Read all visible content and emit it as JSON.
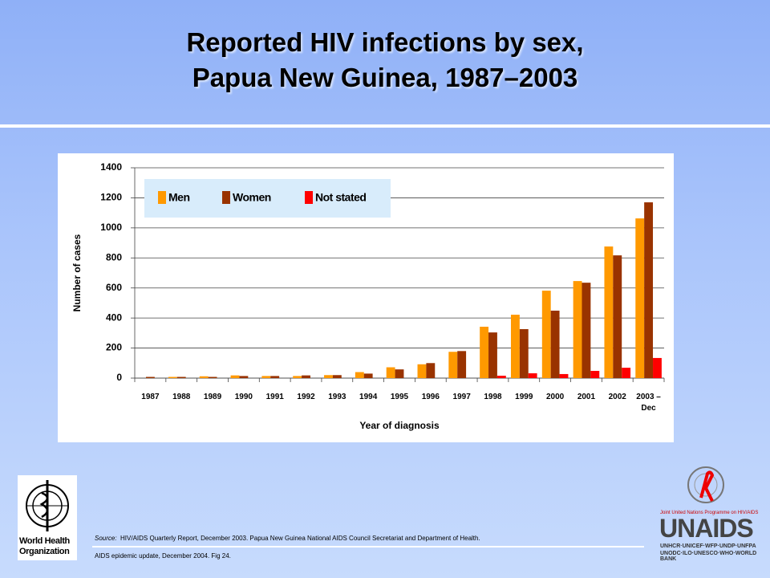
{
  "slide": {
    "title": [
      "Reported HIV infections by sex,",
      "Papua New Guinea, 1987–2003"
    ],
    "source_label": "Source:",
    "source": "HIV/AIDS Quarterly Report, December 2003.  Papua New Guinea National AIDS Council Secretariat and Department of Health.",
    "footnote": "AIDS epidemic update, December 2004.  Fig 24.",
    "who_logo": [
      "World Health",
      "Organization"
    ],
    "unaids_tagline": "Joint United Nations Programme on HIV/AIDS",
    "unaids_logo": "UNAIDS",
    "unaids_sponsors": [
      "UNHCR·UNICEF·WFP·UNDP·UNFPA",
      "UNODC·ILO·UNESCO·WHO·WORLD BANK"
    ]
  },
  "chart_data": {
    "type": "bar",
    "x_label": "Year of diagnosis",
    "y_label": "Number of cases",
    "categories": [
      "1987",
      "1988",
      "1989",
      "1990",
      "1991",
      "1992",
      "1993",
      "1994",
      "1995",
      "1996",
      "1997",
      "1998",
      "1999",
      "2000",
      "2001",
      "2002",
      "2003 – Dec"
    ],
    "series": [
      {
        "name": "Men",
        "color": "#ff9900",
        "values": [
          0,
          8,
          12,
          18,
          14,
          14,
          20,
          40,
          72,
          92,
          175,
          342,
          422,
          582,
          646,
          876,
          1063
        ]
      },
      {
        "name": "Women",
        "color": "#993300",
        "values": [
          8,
          8,
          8,
          14,
          14,
          18,
          20,
          30,
          58,
          100,
          180,
          304,
          326,
          449,
          635,
          817,
          1170
        ]
      },
      {
        "name": "Not stated",
        "color": "#ff0000",
        "values": [
          0,
          0,
          0,
          0,
          0,
          0,
          0,
          0,
          0,
          0,
          0,
          16,
          32,
          27,
          48,
          69,
          134
        ]
      }
    ],
    "ylim": [
      0,
      1400
    ],
    "yticks": [
      0,
      200,
      400,
      600,
      800,
      1000,
      1200,
      1400
    ],
    "grid": true,
    "legend": "top-left"
  }
}
